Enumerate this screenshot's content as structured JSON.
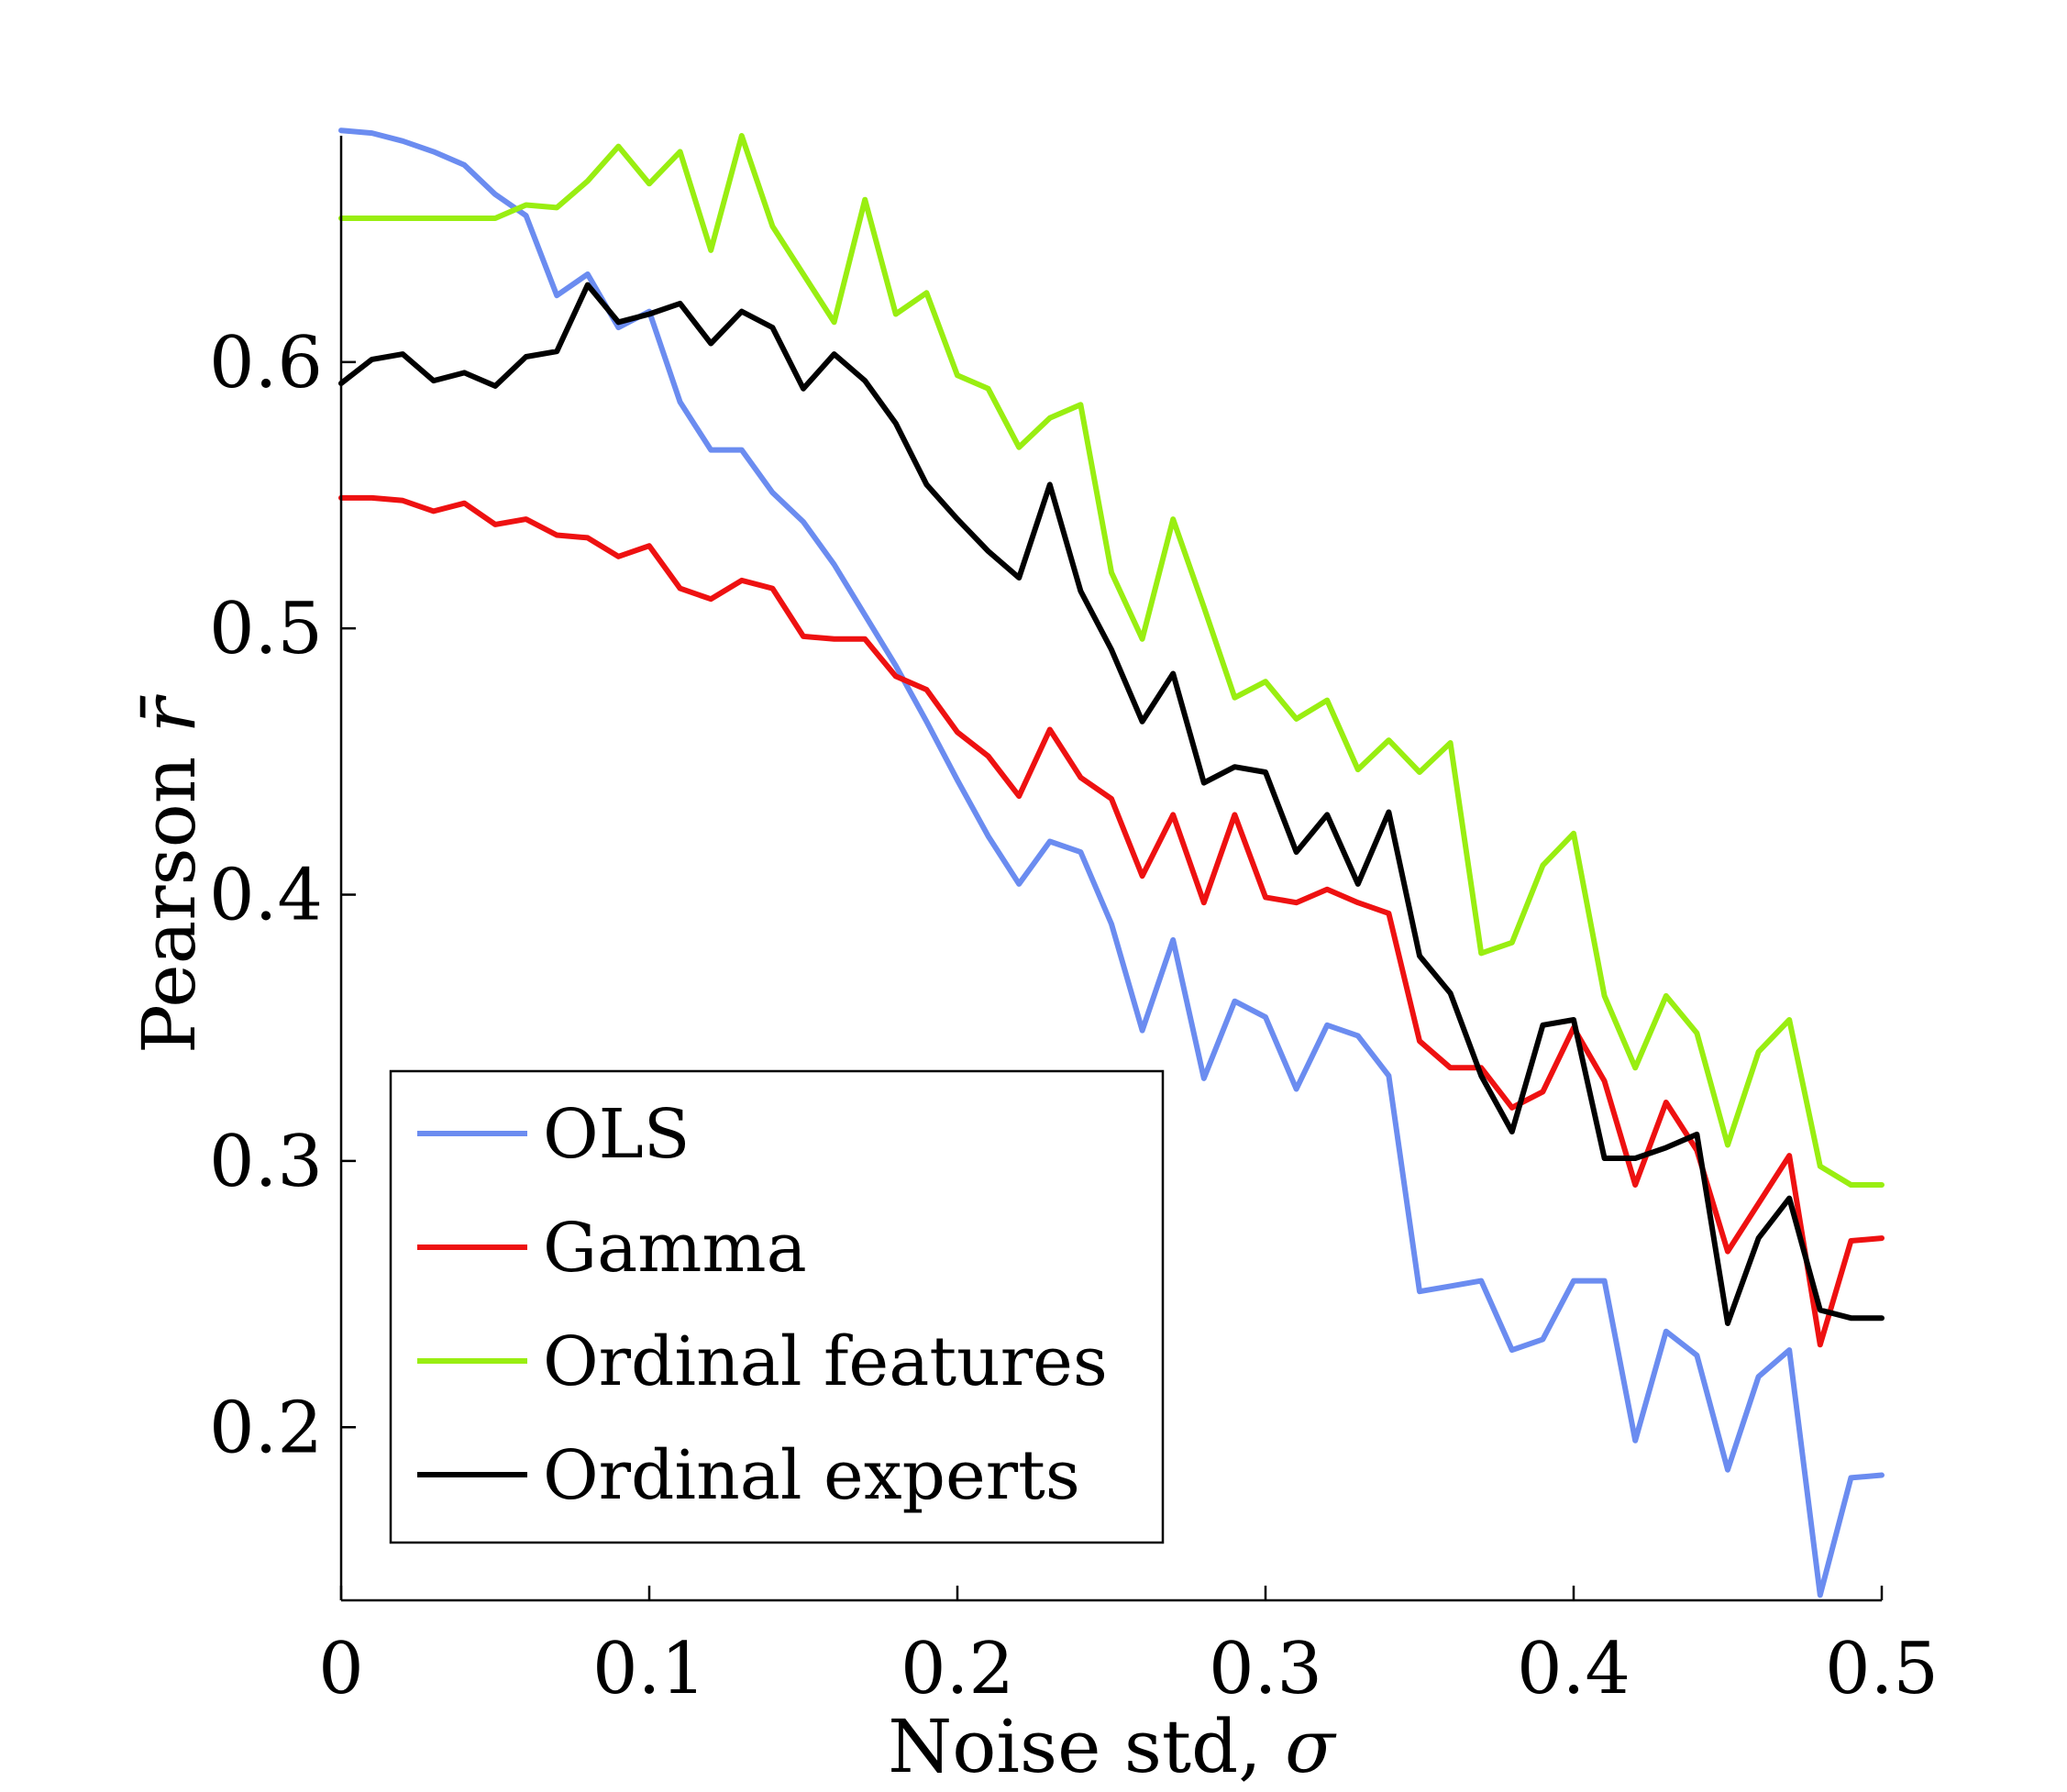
{
  "chart_data": {
    "type": "line",
    "title": "",
    "xlabel_text": "Noise std, ",
    "xlabel_symbol": "σ",
    "ylabel_text": "Pearson ",
    "ylabel_symbol": "r̄",
    "xlim": [
      0,
      0.5
    ],
    "ylim": [
      0.135,
      0.685
    ],
    "xticks": [
      0,
      0.1,
      0.2,
      0.3,
      0.4,
      0.5
    ],
    "xtick_labels": [
      "0",
      "0.1",
      "0.2",
      "0.3",
      "0.4",
      "0.5"
    ],
    "yticks": [
      0.2,
      0.3,
      0.4,
      0.5,
      0.6
    ],
    "ytick_labels": [
      "0.2",
      "0.3",
      "0.4",
      "0.5",
      "0.6"
    ],
    "grid": false,
    "legend_position": "bottom-left",
    "x": [
      0,
      0.01,
      0.02,
      0.03,
      0.04,
      0.05,
      0.06,
      0.07,
      0.08,
      0.09,
      0.1,
      0.11,
      0.12,
      0.13,
      0.14,
      0.15,
      0.16,
      0.17,
      0.18,
      0.19,
      0.2,
      0.21,
      0.22,
      0.23,
      0.24,
      0.25,
      0.26,
      0.27,
      0.28,
      0.29,
      0.3,
      0.31,
      0.32,
      0.33,
      0.34,
      0.35,
      0.36,
      0.37,
      0.38,
      0.39,
      0.4,
      0.41,
      0.42,
      0.43,
      0.44,
      0.45,
      0.46,
      0.47,
      0.48,
      0.49,
      0.5
    ],
    "series": [
      {
        "name": "OLS",
        "color": "#6b8cf0",
        "values": [
          0.687,
          0.686,
          0.683,
          0.679,
          0.674,
          0.663,
          0.655,
          0.625,
          0.633,
          0.613,
          0.619,
          0.585,
          0.567,
          0.567,
          0.551,
          0.54,
          0.524,
          0.505,
          0.486,
          0.465,
          0.443,
          0.422,
          0.404,
          0.42,
          0.416,
          0.389,
          0.349,
          0.383,
          0.331,
          0.36,
          0.354,
          0.327,
          0.351,
          0.347,
          0.332,
          0.251,
          0.253,
          0.255,
          0.229,
          0.233,
          0.255,
          0.255,
          0.195,
          0.236,
          0.227,
          0.184,
          0.219,
          0.229,
          0.137,
          0.181,
          0.182
        ]
      },
      {
        "name": "Gamma",
        "color": "#ee1111",
        "values": [
          0.549,
          0.549,
          0.548,
          0.544,
          0.547,
          0.539,
          0.541,
          0.535,
          0.534,
          0.527,
          0.531,
          0.515,
          0.511,
          0.518,
          0.515,
          0.497,
          0.496,
          0.496,
          0.482,
          0.477,
          0.461,
          0.452,
          0.437,
          0.462,
          0.444,
          0.436,
          0.407,
          0.43,
          0.397,
          0.43,
          0.399,
          0.397,
          0.402,
          0.397,
          0.393,
          0.345,
          0.335,
          0.335,
          0.32,
          0.326,
          0.35,
          0.33,
          0.291,
          0.322,
          0.304,
          0.266,
          0.284,
          0.302,
          0.231,
          0.27,
          0.271
        ]
      },
      {
        "name": "Ordinal features",
        "color": "#99ee11",
        "values": [
          0.654,
          0.654,
          0.654,
          0.654,
          0.654,
          0.654,
          0.659,
          0.658,
          0.668,
          0.681,
          0.667,
          0.679,
          0.642,
          0.685,
          0.651,
          0.633,
          0.615,
          0.661,
          0.618,
          0.626,
          0.595,
          0.59,
          0.568,
          0.579,
          0.584,
          0.521,
          0.496,
          0.541,
          0.508,
          0.474,
          0.48,
          0.466,
          0.473,
          0.447,
          0.458,
          0.446,
          0.457,
          0.378,
          0.382,
          0.411,
          0.423,
          0.362,
          0.335,
          0.362,
          0.348,
          0.306,
          0.341,
          0.353,
          0.298,
          0.291,
          0.291
        ]
      },
      {
        "name": "Ordinal experts",
        "color": "#000000",
        "values": [
          0.592,
          0.601,
          0.603,
          0.593,
          0.596,
          0.591,
          0.602,
          0.604,
          0.629,
          0.615,
          0.618,
          0.622,
          0.607,
          0.619,
          0.613,
          0.59,
          0.603,
          0.593,
          0.577,
          0.554,
          0.541,
          0.529,
          0.519,
          0.554,
          0.514,
          0.492,
          0.465,
          0.483,
          0.442,
          0.448,
          0.446,
          0.416,
          0.43,
          0.404,
          0.431,
          0.377,
          0.363,
          0.332,
          0.311,
          0.351,
          0.353,
          0.301,
          0.301,
          0.305,
          0.31,
          0.239,
          0.271,
          0.286,
          0.244,
          0.241,
          0.241
        ]
      }
    ]
  }
}
